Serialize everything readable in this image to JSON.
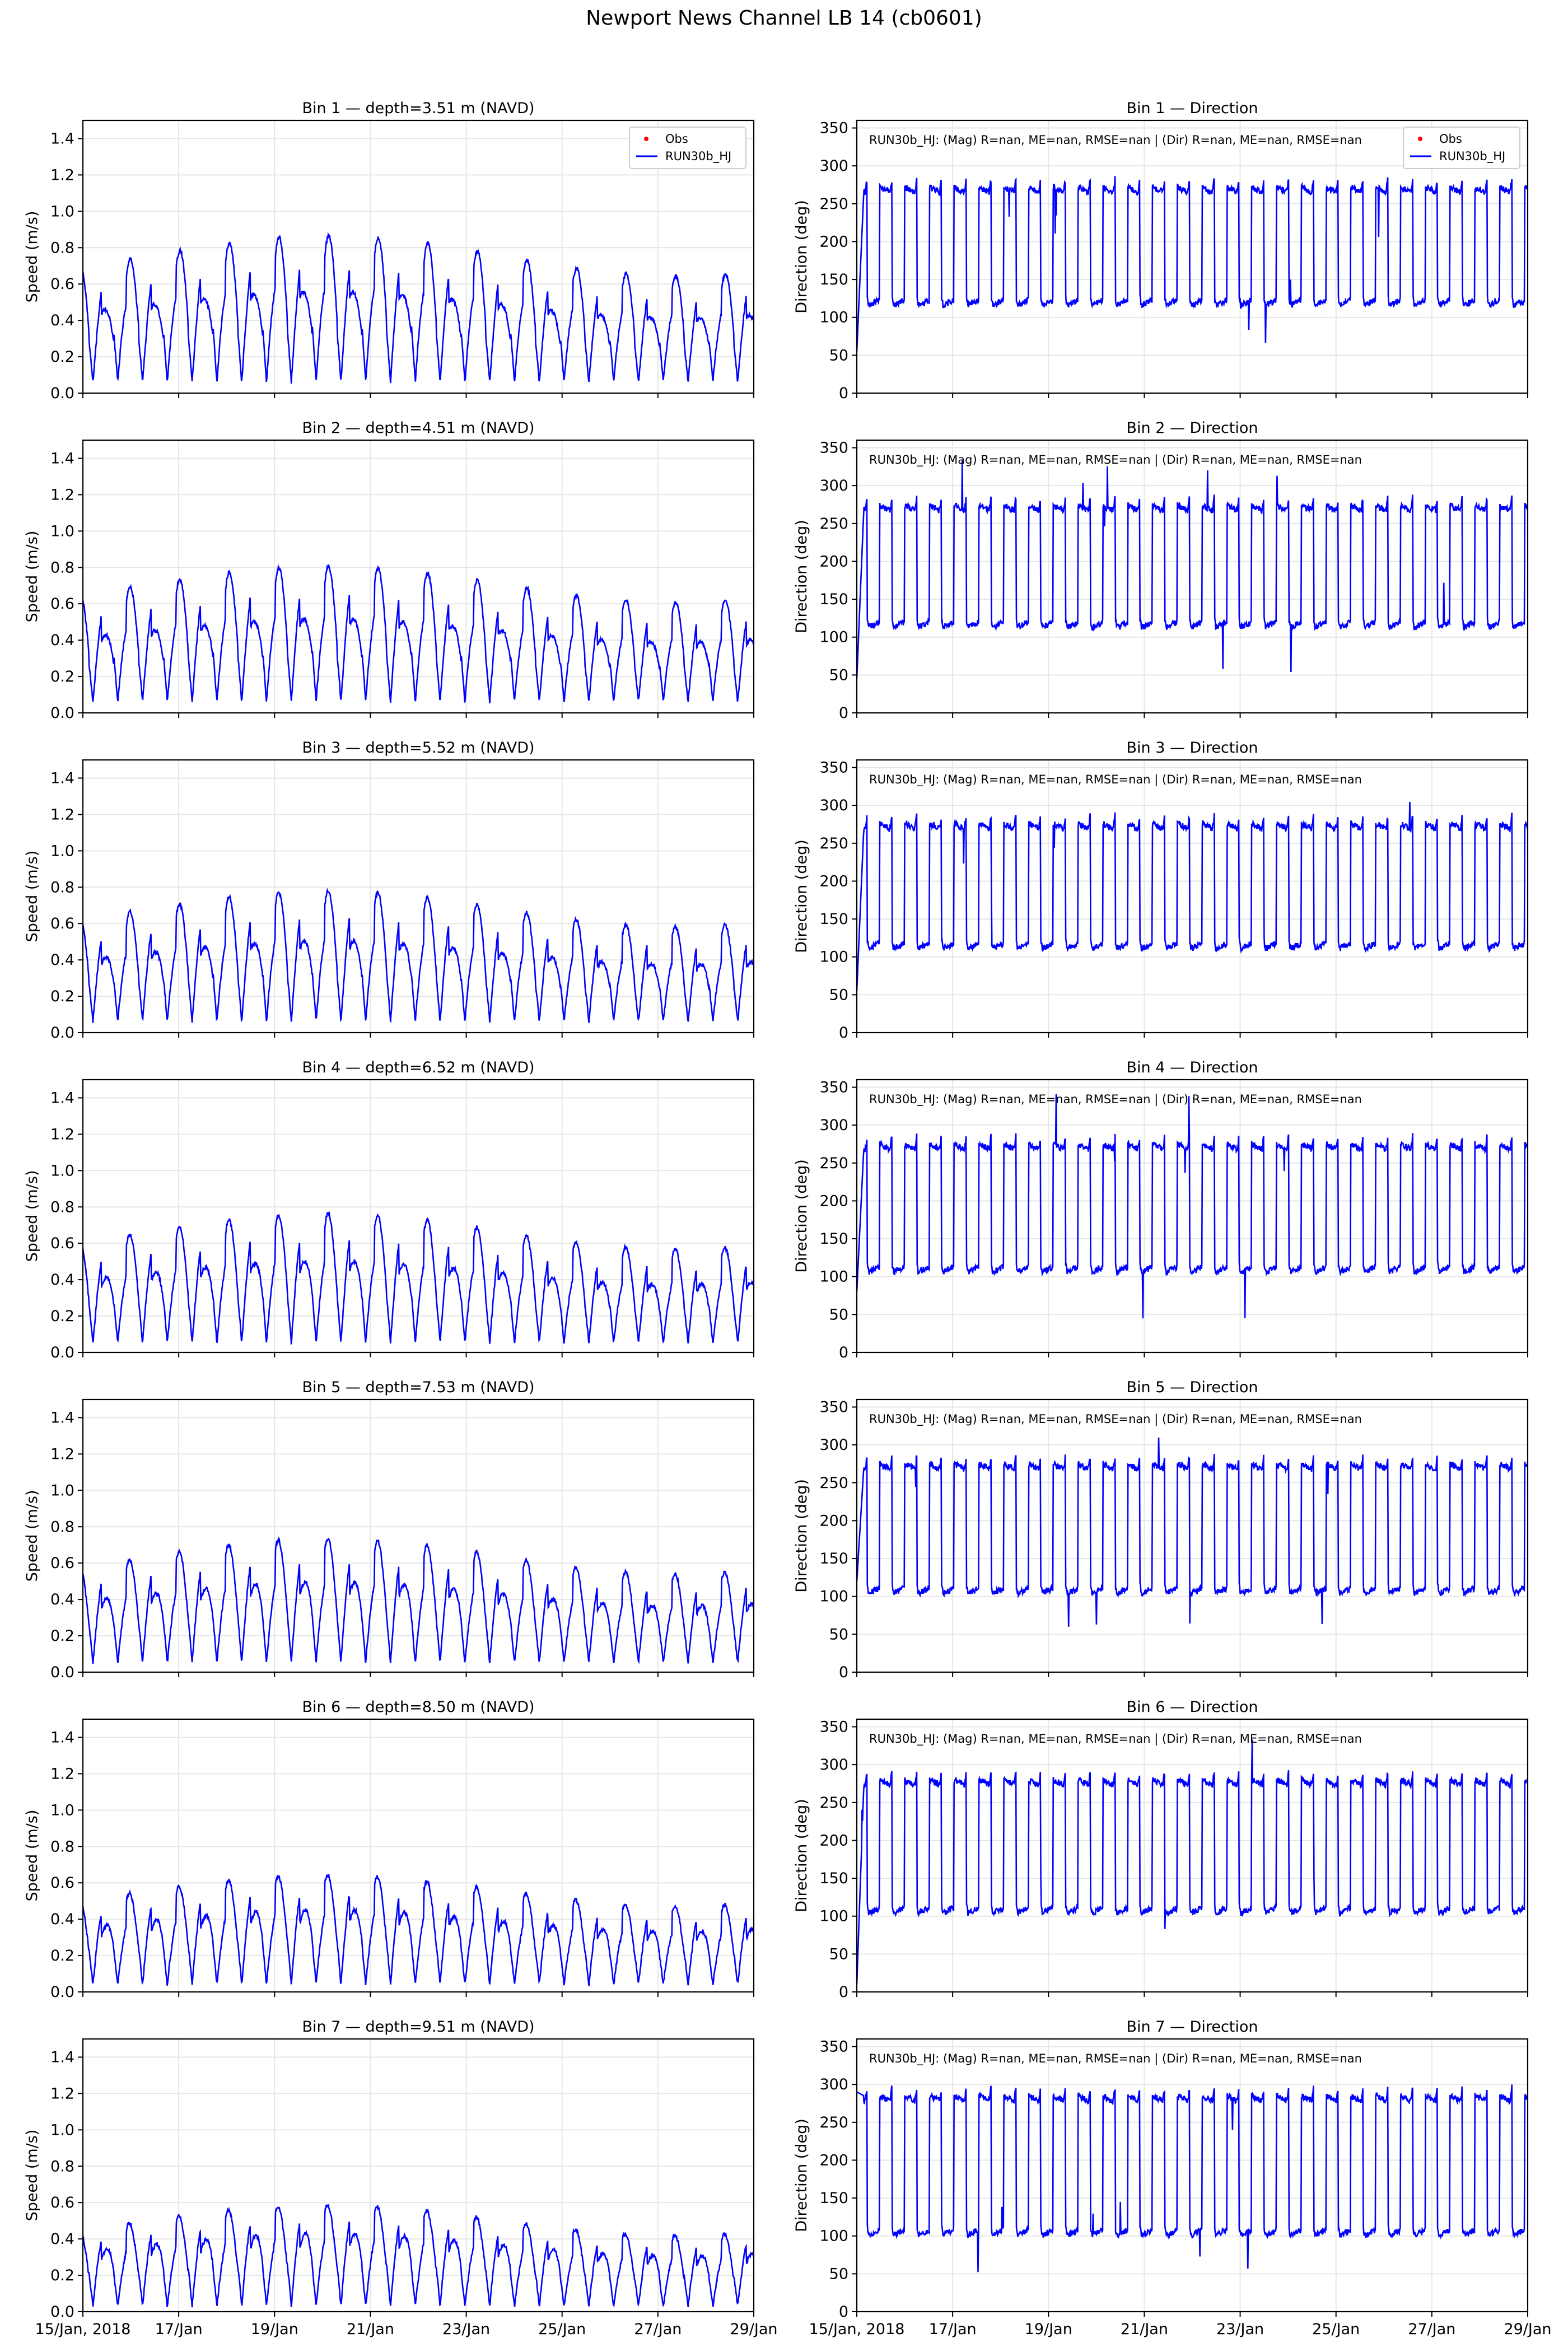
{
  "figure": {
    "title": "Newport News Channel LB 14 (cb0601)"
  },
  "legend": {
    "obs_label": "Obs",
    "model_label": "RUN30b_HJ",
    "obs_color": "#ff0000",
    "model_color": "#0000ff"
  },
  "stats_text": "RUN30b_HJ: (Mag) R=nan, ME=nan, RMSE=nan | (Dir) R=nan, ME=nan, RMSE=nan",
  "xaxis": {
    "range_days": [
      0,
      14
    ],
    "ticks": [
      {
        "day": 0,
        "label": "15/Jan, 2018"
      },
      {
        "day": 2,
        "label": "17/Jan"
      },
      {
        "day": 4,
        "label": "19/Jan"
      },
      {
        "day": 6,
        "label": "21/Jan"
      },
      {
        "day": 8,
        "label": "23/Jan"
      },
      {
        "day": 10,
        "label": "25/Jan"
      },
      {
        "day": 12,
        "label": "27/Jan"
      },
      {
        "day": 14,
        "label": "29/Jan"
      }
    ]
  },
  "speed_axis": {
    "ylabel": "Speed (m/s)",
    "ylim": [
      0,
      1.5
    ],
    "ticks": [
      "0.0",
      "0.2",
      "0.4",
      "0.6",
      "0.8",
      "1.0",
      "1.2",
      "1.4"
    ]
  },
  "direction_axis": {
    "ylabel": "Direction (deg)",
    "ylim": [
      0,
      360
    ],
    "ticks": [
      "0",
      "50",
      "100",
      "150",
      "200",
      "250",
      "300",
      "350"
    ]
  },
  "chart_data": [
    {
      "type": "line",
      "bin": 1,
      "title": "Bin 1 — depth=3.51 m (NAVD)",
      "ylabel": "Speed (m/s)",
      "ylim": [
        0,
        1.5
      ],
      "legend": "top-right",
      "series": [
        {
          "name": "RUN30b_HJ",
          "kind": "speed",
          "amp_base": 0.62,
          "amp_var": 0.1,
          "trough": 0.06
        }
      ]
    },
    {
      "type": "line",
      "bin": 1,
      "title": "Bin 1 — Direction",
      "ylabel": "Direction (deg)",
      "ylim": [
        0,
        360
      ],
      "legend": "top-right",
      "series": [
        {
          "name": "RUN30b_HJ",
          "kind": "direction",
          "flood_deg": 272,
          "ebb_deg": 115,
          "start_deg": 55
        }
      ]
    },
    {
      "type": "line",
      "bin": 2,
      "title": "Bin 2 — depth=4.51 m (NAVD)",
      "ylabel": "Speed (m/s)",
      "ylim": [
        0,
        1.5
      ],
      "series": [
        {
          "name": "RUN30b_HJ",
          "kind": "speed",
          "amp_base": 0.58,
          "amp_var": 0.09,
          "trough": 0.06
        }
      ]
    },
    {
      "type": "line",
      "bin": 2,
      "title": "Bin 2 — Direction",
      "ylabel": "Direction (deg)",
      "ylim": [
        0,
        360
      ],
      "series": [
        {
          "name": "RUN30b_HJ",
          "kind": "direction",
          "flood_deg": 274,
          "ebb_deg": 112,
          "start_deg": 45
        }
      ]
    },
    {
      "type": "line",
      "bin": 3,
      "title": "Bin 3 — depth=5.52 m (NAVD)",
      "ylabel": "Speed (m/s)",
      "ylim": [
        0,
        1.5
      ],
      "series": [
        {
          "name": "RUN30b_HJ",
          "kind": "speed",
          "amp_base": 0.56,
          "amp_var": 0.09,
          "trough": 0.06
        }
      ]
    },
    {
      "type": "line",
      "bin": 3,
      "title": "Bin 3 — Direction",
      "ylabel": "Direction (deg)",
      "ylim": [
        0,
        360
      ],
      "series": [
        {
          "name": "RUN30b_HJ",
          "kind": "direction",
          "flood_deg": 276,
          "ebb_deg": 110,
          "start_deg": 55
        }
      ]
    },
    {
      "type": "line",
      "bin": 4,
      "title": "Bin 4 — depth=6.52 m (NAVD)",
      "ylabel": "Speed (m/s)",
      "ylim": [
        0,
        1.5
      ],
      "series": [
        {
          "name": "RUN30b_HJ",
          "kind": "speed",
          "amp_base": 0.55,
          "amp_var": 0.09,
          "trough": 0.05
        }
      ]
    },
    {
      "type": "line",
      "bin": 4,
      "title": "Bin 4 — Direction",
      "ylabel": "Direction (deg)",
      "ylim": [
        0,
        360
      ],
      "series": [
        {
          "name": "RUN30b_HJ",
          "kind": "direction",
          "flood_deg": 275,
          "ebb_deg": 105,
          "start_deg": 80
        }
      ]
    },
    {
      "type": "line",
      "bin": 5,
      "title": "Bin 5 — depth=7.53 m (NAVD)",
      "ylabel": "Speed (m/s)",
      "ylim": [
        0,
        1.5
      ],
      "series": [
        {
          "name": "RUN30b_HJ",
          "kind": "speed",
          "amp_base": 0.53,
          "amp_var": 0.09,
          "trough": 0.05
        }
      ]
    },
    {
      "type": "line",
      "bin": 5,
      "title": "Bin 5 — Direction",
      "ylabel": "Direction (deg)",
      "ylim": [
        0,
        360
      ],
      "series": [
        {
          "name": "RUN30b_HJ",
          "kind": "direction",
          "flood_deg": 275,
          "ebb_deg": 103,
          "start_deg": 120
        }
      ]
    },
    {
      "type": "line",
      "bin": 6,
      "title": "Bin 6 — depth=8.50 m (NAVD)",
      "ylabel": "Speed (m/s)",
      "ylim": [
        0,
        1.5
      ],
      "series": [
        {
          "name": "RUN30b_HJ",
          "kind": "speed",
          "amp_base": 0.47,
          "amp_var": 0.08,
          "trough": 0.04
        }
      ]
    },
    {
      "type": "line",
      "bin": 6,
      "title": "Bin 6 — Direction",
      "ylabel": "Direction (deg)",
      "ylim": [
        0,
        360
      ],
      "series": [
        {
          "name": "RUN30b_HJ",
          "kind": "direction",
          "flood_deg": 280,
          "ebb_deg": 103,
          "start_deg": 10
        }
      ]
    },
    {
      "type": "line",
      "bin": 7,
      "title": "Bin 7 — depth=9.51 m (NAVD)",
      "ylabel": "Speed (m/s)",
      "ylim": [
        0,
        1.5
      ],
      "series": [
        {
          "name": "RUN30b_HJ",
          "kind": "speed",
          "amp_base": 0.43,
          "amp_var": 0.08,
          "trough": 0.03
        }
      ]
    },
    {
      "type": "line",
      "bin": 7,
      "title": "Bin 7 — Direction",
      "ylabel": "Direction (deg)",
      "ylim": [
        0,
        360
      ],
      "series": [
        {
          "name": "RUN30b_HJ",
          "kind": "direction",
          "flood_deg": 285,
          "ebb_deg": 100,
          "start_deg": 290
        }
      ]
    }
  ]
}
